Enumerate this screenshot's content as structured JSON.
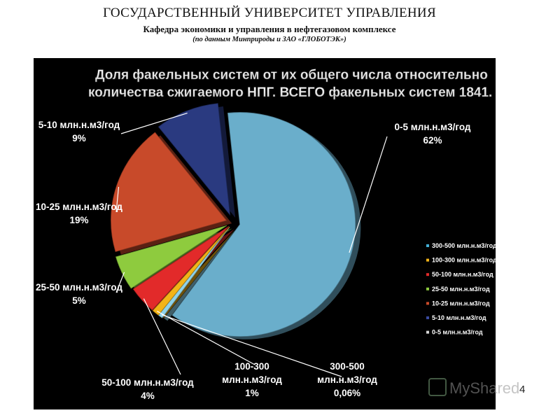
{
  "header": {
    "title": "ГОСУДАРСТВЕННЫЙ УНИВЕРСИТЕТ УПРАВЛЕНИЯ",
    "subtitle": "Кафедра экономики и управления в нефтегазовом комплексе",
    "note": "(по данным Минприроды и ЗАО «ГЛОБОТЭК»)"
  },
  "page_number": "4",
  "watermark": "MyShared",
  "chart_data": {
    "type": "pie",
    "title_lines": [
      "Доля факельных систем от их общего числа относительно",
      "количества сжигаемого НПГ. ВСЕГО факельных систем 1841."
    ],
    "slices": [
      {
        "label_line1": "0-5 млн.н.м3/год",
        "label_line2": "62%",
        "value": 62,
        "color": "#6aaecb"
      },
      {
        "label_line1": "300-500",
        "label_line2": "млн.н.м3/год",
        "label_line3": "0,06%",
        "value": 0.06,
        "color": "#8fd3ea"
      },
      {
        "label_line1": "100-300",
        "label_line2": "млн.н.м3/год",
        "label_line3": "1%",
        "value": 1,
        "color": "#f2b418"
      },
      {
        "label_line1": "50-100 млн.н.м3/год",
        "label_line2": "4%",
        "value": 4,
        "color": "#e22a2a"
      },
      {
        "label_line1": "25-50 млн.н.м3/год",
        "label_line2": "5%",
        "value": 5,
        "color": "#8ecb3e"
      },
      {
        "label_line1": "10-25 млн.н.м3/год",
        "label_line2": "19%",
        "value": 19,
        "color": "#c84a2a"
      },
      {
        "label_line1": "5-10 млн.н.м3/год",
        "label_line2": "9%",
        "value": 9,
        "color": "#2a3a80"
      }
    ],
    "legend": {
      "placement": "right",
      "items": [
        {
          "label": "300-500 млн.н.м3/год",
          "color": "#43b0d6"
        },
        {
          "label": "100-300 млн.н.м3/год",
          "color": "#f2b418"
        },
        {
          "label": "50-100 млн.н.м3/год",
          "color": "#e22a2a"
        },
        {
          "label": "25-50 млн.н.м3/год",
          "color": "#8ecb3e"
        },
        {
          "label": "10-25 млн.н.м3/год",
          "color": "#c84a2a"
        },
        {
          "label": "5-10 млн.н.м3/год",
          "color": "#3a4aa0"
        },
        {
          "label": "0-5 млн.н.м3/год",
          "color": "#d8d8d8"
        }
      ]
    }
  }
}
